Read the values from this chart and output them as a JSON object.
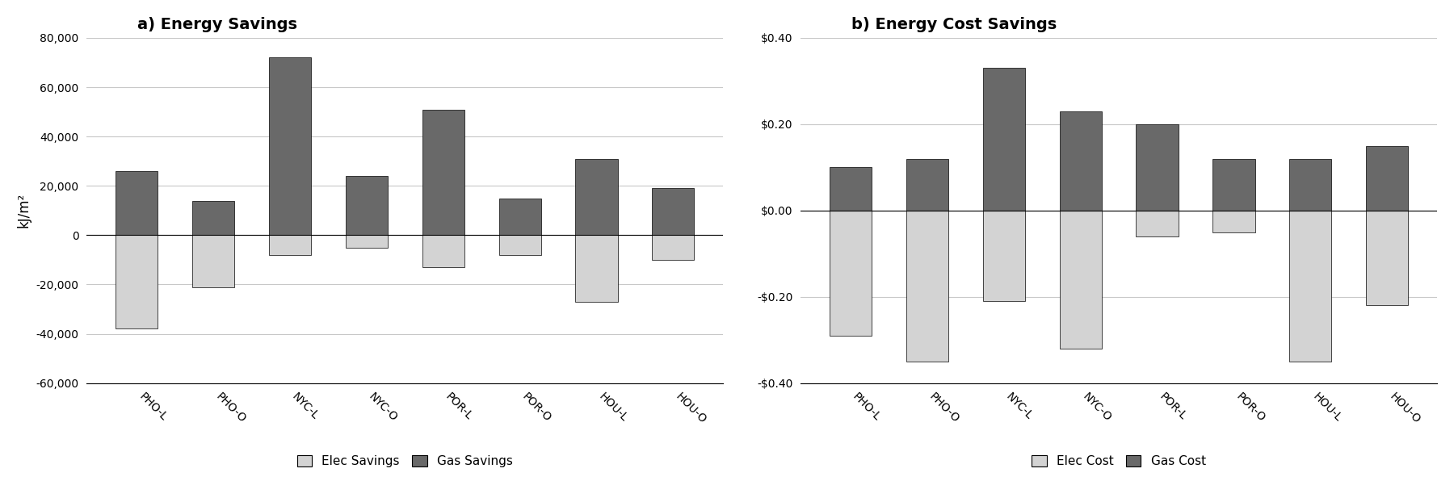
{
  "categories": [
    "PHO-L",
    "PHO-O",
    "NYC-L",
    "NYC-O",
    "POR-L",
    "POR-O",
    "HOU-L",
    "HOU-O"
  ],
  "chart_a": {
    "title": "a) Energy Savings",
    "ylabel": "kJ/m²",
    "elec_savings": [
      -38000,
      -21000,
      -8000,
      -5000,
      -13000,
      -8000,
      -27000,
      -10000
    ],
    "gas_savings": [
      26000,
      14000,
      72000,
      24000,
      51000,
      15000,
      31000,
      19000
    ],
    "ylim": [
      -60000,
      80000
    ],
    "yticks": [
      -60000,
      -40000,
      -20000,
      0,
      20000,
      40000,
      60000,
      80000
    ],
    "legend_labels": [
      "Elec Savings",
      "Gas Savings"
    ]
  },
  "chart_b": {
    "title": "b) Energy Cost Savings",
    "ylabel": "",
    "elec_cost": [
      -0.29,
      -0.35,
      -0.21,
      -0.32,
      -0.06,
      -0.05,
      -0.35,
      -0.22
    ],
    "gas_cost": [
      0.1,
      0.12,
      0.33,
      0.23,
      0.2,
      0.12,
      0.12,
      0.15
    ],
    "ylim": [
      -0.4,
      0.4
    ],
    "yticks": [
      -0.4,
      -0.2,
      0.0,
      0.2,
      0.4
    ],
    "legend_labels": [
      "Elec Cost",
      "Gas Cost"
    ]
  },
  "color_elec": "#d3d3d3",
  "color_gas": "#696969",
  "bar_width": 0.55,
  "background_color": "#ffffff",
  "grid_color": "#c8c8c8"
}
